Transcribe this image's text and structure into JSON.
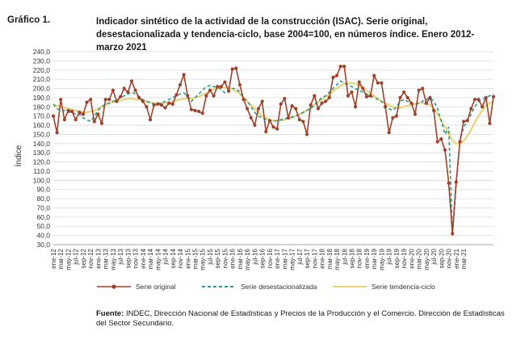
{
  "header": {
    "number": "Gráfico 1.",
    "title": "Indicador sintético de la actividad de la construcción (ISAC). Serie original, desestacionalizada y tendencia-ciclo, base 2004=100, en números índice. Enero 2012-marzo 2021"
  },
  "source": {
    "label": "Fuente:",
    "text": "INDEC, Dirección Nacional de Estadísticas y Precios de la Producción y el Comercio. Dirección de Estadísticas del Sector Secundario."
  },
  "colors": {
    "original": "#a0412b",
    "desest": "#2a9a8a",
    "tendencia": "#e8d27a",
    "grid": "#d9d9d9"
  },
  "chart_data": {
    "type": "line",
    "title": "",
    "xlabel": "",
    "ylabel": "Índice",
    "ylim": [
      30,
      240
    ],
    "ytick_step": 10,
    "yticks": [
      "30,0",
      "40,0",
      "50,0",
      "60,0",
      "70,0",
      "80,0",
      "90,0",
      "100,0",
      "110,0",
      "120,0",
      "130,0",
      "140,0",
      "150,0",
      "160,0",
      "170,0",
      "180,0",
      "190,0",
      "200,0",
      "210,0",
      "220,0",
      "230,0",
      "240,0"
    ],
    "grid": true,
    "legend_position": "bottom",
    "x_tick_labels": [
      "ene-12",
      "mar-12",
      "may-12",
      "jul-12",
      "sep-12",
      "nov-12",
      "ene-13",
      "mar-13",
      "may-13",
      "jul-13",
      "sep-13",
      "nov-13",
      "ene-14",
      "mar-14",
      "may-14",
      "jul-14",
      "sep-14",
      "nov-14",
      "ene-15",
      "mar-15",
      "may-15",
      "jul-15",
      "sep-15",
      "nov-15",
      "ene-16",
      "mar-16",
      "may-16",
      "jul-16",
      "sep-16",
      "nov-16",
      "ene-17",
      "mar-17",
      "may-17",
      "jul-17",
      "sep-17",
      "nov-17",
      "ene-18",
      "mar-18",
      "may-18",
      "jul-18",
      "sep-18",
      "nov-18",
      "ene-19",
      "mar-19",
      "may-19",
      "jul-19",
      "sep-19",
      "nov-19",
      "ene-20",
      "mar-20",
      "may-20",
      "jul-20",
      "sep-20",
      "nov-20",
      "ene-21",
      "mar-21"
    ],
    "series": [
      {
        "name": "Serie original",
        "values": [
          170,
          152,
          188,
          166,
          176,
          175,
          166,
          174,
          172,
          185,
          188,
          164,
          172,
          162,
          188,
          188,
          198,
          186,
          191,
          200,
          196,
          208,
          198,
          190,
          186,
          180,
          166,
          182,
          183,
          182,
          179,
          184,
          183,
          193,
          204,
          215,
          192,
          177,
          176,
          175,
          173,
          192,
          198,
          192,
          202,
          202,
          207,
          197,
          221,
          222,
          204,
          188,
          178,
          168,
          160,
          178,
          186,
          153,
          165,
          158,
          156,
          183,
          189,
          168,
          181,
          178,
          166,
          164,
          150,
          182,
          192,
          178,
          184,
          186,
          190,
          212,
          214,
          224,
          224,
          192,
          196,
          180,
          207,
          200,
          191,
          192,
          214,
          206,
          206,
          180,
          152,
          168,
          170,
          190,
          196,
          190,
          184,
          172,
          198,
          200,
          184,
          190,
          176,
          142,
          145,
          133,
          97,
          42,
          98,
          142,
          164,
          165,
          178,
          188,
          188,
          180,
          190,
          162,
          191
        ]
      },
      {
        "name": "Serie desestacionalizada",
        "values": [
          183,
          178,
          176,
          176,
          174,
          174,
          172,
          172,
          168,
          166,
          164,
          170,
          176,
          180,
          183,
          184,
          186,
          187,
          190,
          192,
          194,
          196,
          194,
          190,
          188,
          186,
          184,
          183,
          184,
          184,
          186,
          188,
          190,
          192,
          194,
          195,
          192,
          186,
          190,
          194,
          198,
          202,
          203,
          202,
          201,
          199,
          195,
          197,
          200,
          200,
          196,
          190,
          186,
          180,
          174,
          170,
          168,
          166,
          165,
          164,
          165,
          166,
          167,
          168,
          169,
          170,
          172,
          174,
          176,
          178,
          182,
          186,
          190,
          192,
          196,
          200,
          204,
          208,
          206,
          204,
          202,
          200,
          198,
          196,
          194,
          192,
          190,
          188,
          186,
          182,
          178,
          176,
          180,
          186,
          188,
          186,
          184,
          182,
          184,
          186,
          188,
          190,
          186,
          178,
          165,
          150,
          158,
          40,
          95,
          142,
          158,
          164,
          172,
          180,
          186,
          188,
          190,
          192,
          194
        ]
      },
      {
        "name": "Serie tendencia-ciclo",
        "values": [
          182,
          181,
          180,
          179,
          178,
          177,
          176,
          175,
          174,
          174,
          175,
          176,
          178,
          180,
          182,
          184,
          185,
          186,
          187,
          188,
          189,
          189,
          188,
          188,
          187,
          186,
          185,
          184,
          184,
          184,
          184,
          185,
          186,
          187,
          188,
          189,
          189,
          189,
          190,
          191,
          193,
          195,
          197,
          199,
          200,
          201,
          201,
          201,
          199,
          197,
          194,
          190,
          186,
          182,
          178,
          174,
          170,
          168,
          166,
          165,
          165,
          165,
          166,
          167,
          168,
          170,
          172,
          174,
          176,
          179,
          182,
          185,
          188,
          191,
          194,
          197,
          200,
          203,
          205,
          206,
          206,
          205,
          203,
          200,
          198,
          195,
          192,
          189,
          186,
          184,
          182,
          180,
          179,
          179,
          180,
          181,
          182,
          183,
          184,
          184,
          183,
          182,
          178,
          172,
          165,
          158,
          150,
          144,
          140,
          140,
          143,
          148,
          155,
          163,
          170,
          176,
          181,
          184,
          186
        ]
      }
    ]
  }
}
